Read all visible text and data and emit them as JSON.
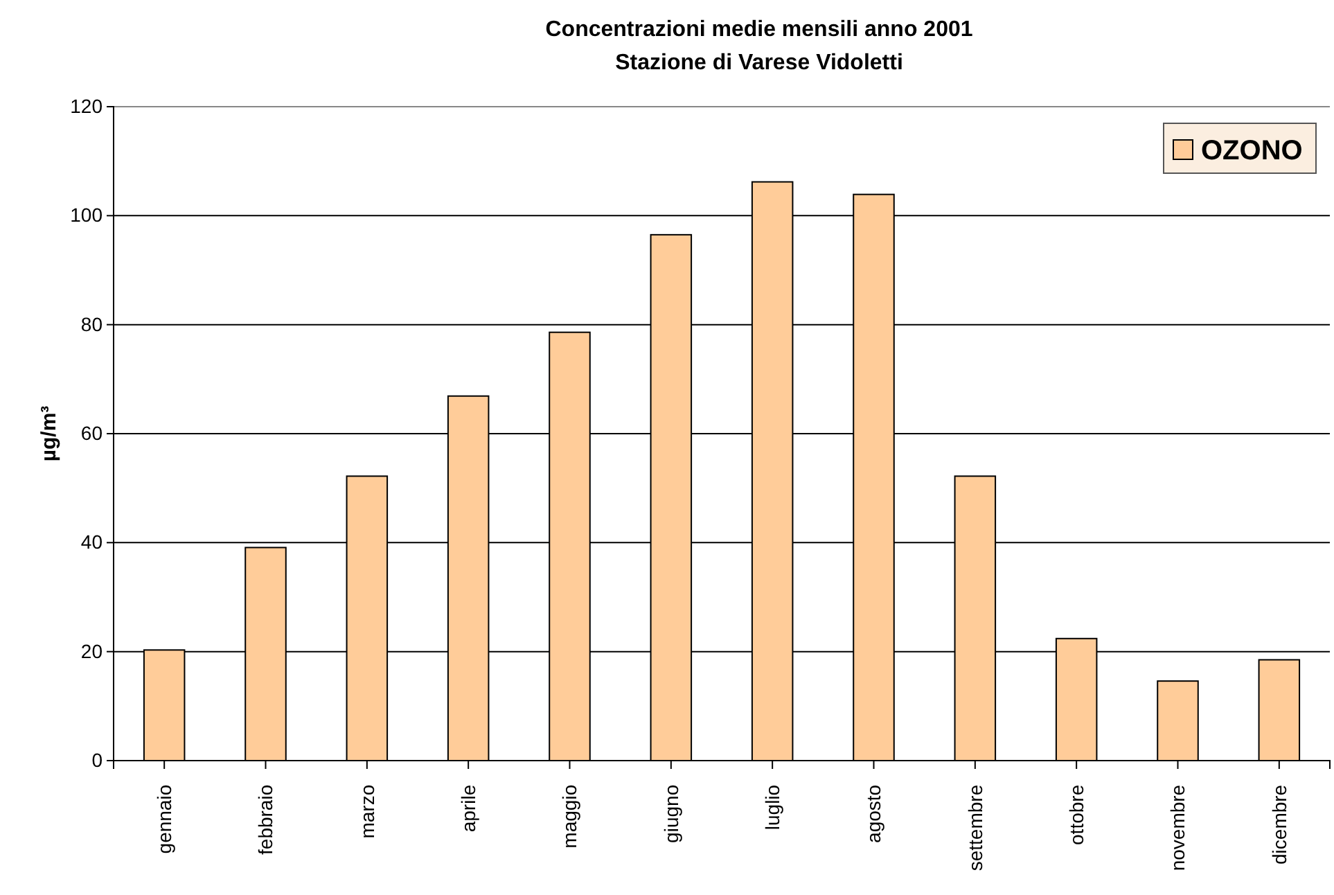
{
  "chart_data": {
    "type": "bar",
    "title": "Concentrazioni medie mensili anno 2001",
    "subtitle": "Stazione di Varese Vidoletti",
    "ylabel": "µg/m³",
    "categories": [
      "gennaio",
      "febbraio",
      "marzo",
      "aprile",
      "maggio",
      "giugno",
      "luglio",
      "agosto",
      "settembre",
      "ottobre",
      "novembre",
      "dicembre"
    ],
    "series": [
      {
        "name": "OZONO",
        "color": "#ffcc99",
        "values": [
          20.3,
          39.1,
          52.2,
          66.9,
          78.6,
          96.5,
          106.2,
          103.9,
          52.2,
          22.4,
          14.6,
          18.5
        ]
      }
    ],
    "ylim": [
      0,
      120
    ],
    "yticks": [
      0,
      20,
      40,
      60,
      80,
      100,
      120
    ],
    "grid": "y",
    "legend": "top right"
  }
}
